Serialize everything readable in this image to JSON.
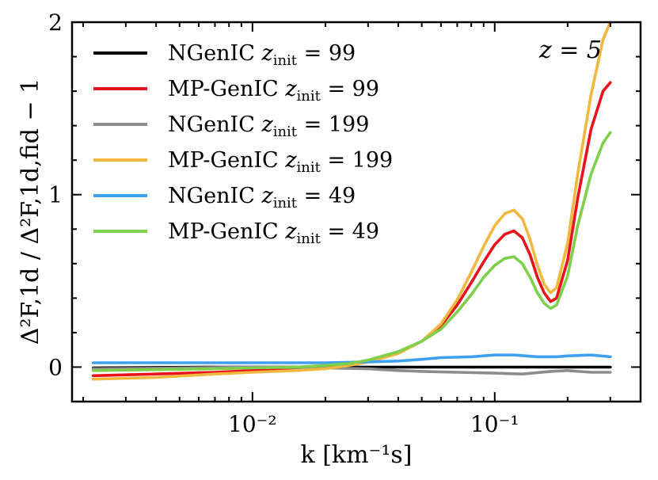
{
  "chart_data": {
    "type": "line",
    "annotation": "z = 5",
    "xlabel": "k [km⁻¹s]",
    "ylabel": "Δ²F,1d / Δ²F,1d,fid − 1",
    "xscale": "log",
    "xlim": [
      0.0018,
      0.4
    ],
    "ylim": [
      -0.2,
      2.0
    ],
    "xticks": [
      {
        "value": 0.01,
        "label": "10⁻²"
      },
      {
        "value": 0.1,
        "label": "10⁻¹"
      }
    ],
    "yticks": [
      {
        "value": 0,
        "label": "0"
      },
      {
        "value": 1,
        "label": "1"
      },
      {
        "value": 2,
        "label": "2"
      }
    ],
    "legend_position": "top-left",
    "series": [
      {
        "name": "NGenIC",
        "zinit": "99",
        "color": "#000000",
        "x": [
          0.0022,
          0.004,
          0.007,
          0.01,
          0.02,
          0.03,
          0.05,
          0.08,
          0.12,
          0.18,
          0.25,
          0.3
        ],
        "y": [
          -0.005,
          -0.002,
          0.0,
          0.0,
          0.0,
          0.0,
          0.0,
          0.0,
          0.0,
          0.0,
          0.0,
          0.0
        ]
      },
      {
        "name": "MP-GenIC",
        "zinit": "99",
        "color": "#e8131b",
        "x": [
          0.0022,
          0.004,
          0.007,
          0.01,
          0.015,
          0.02,
          0.025,
          0.03,
          0.04,
          0.05,
          0.06,
          0.07,
          0.08,
          0.09,
          0.1,
          0.11,
          0.12,
          0.13,
          0.14,
          0.15,
          0.16,
          0.17,
          0.18,
          0.2,
          0.22,
          0.25,
          0.28,
          0.3
        ],
        "y": [
          -0.05,
          -0.04,
          -0.03,
          -0.02,
          -0.01,
          0.0,
          0.01,
          0.03,
          0.08,
          0.15,
          0.24,
          0.36,
          0.49,
          0.61,
          0.71,
          0.77,
          0.79,
          0.75,
          0.65,
          0.52,
          0.43,
          0.38,
          0.4,
          0.62,
          0.98,
          1.38,
          1.6,
          1.65
        ]
      },
      {
        "name": "NGenIC",
        "zinit": "199",
        "color": "#8c8c8c",
        "x": [
          0.0022,
          0.005,
          0.01,
          0.02,
          0.03,
          0.04,
          0.05,
          0.07,
          0.1,
          0.13,
          0.17,
          0.2,
          0.25,
          0.3
        ],
        "y": [
          -0.01,
          -0.005,
          0.0,
          -0.005,
          -0.01,
          -0.02,
          -0.025,
          -0.03,
          -0.035,
          -0.04,
          -0.025,
          -0.02,
          -0.03,
          -0.03
        ]
      },
      {
        "name": "MP-GenIC",
        "zinit": "199",
        "color": "#f0b83e",
        "x": [
          0.0022,
          0.004,
          0.007,
          0.01,
          0.015,
          0.02,
          0.025,
          0.03,
          0.04,
          0.05,
          0.06,
          0.07,
          0.08,
          0.09,
          0.1,
          0.11,
          0.12,
          0.13,
          0.14,
          0.15,
          0.16,
          0.17,
          0.18,
          0.2,
          0.22,
          0.25,
          0.28,
          0.3
        ],
        "y": [
          -0.07,
          -0.06,
          -0.04,
          -0.03,
          -0.02,
          -0.01,
          0.01,
          0.03,
          0.08,
          0.15,
          0.25,
          0.39,
          0.55,
          0.7,
          0.82,
          0.89,
          0.91,
          0.86,
          0.74,
          0.59,
          0.48,
          0.43,
          0.46,
          0.72,
          1.12,
          1.58,
          1.9,
          2.0
        ]
      },
      {
        "name": "NGenIC",
        "zinit": "49",
        "color": "#3fa0ef",
        "x": [
          0.0022,
          0.005,
          0.01,
          0.02,
          0.03,
          0.04,
          0.05,
          0.06,
          0.08,
          0.1,
          0.12,
          0.15,
          0.18,
          0.2,
          0.25,
          0.3
        ],
        "y": [
          0.025,
          0.025,
          0.025,
          0.025,
          0.03,
          0.035,
          0.045,
          0.055,
          0.06,
          0.07,
          0.07,
          0.06,
          0.06,
          0.065,
          0.07,
          0.06
        ]
      },
      {
        "name": "MP-GenIC",
        "zinit": "49",
        "color": "#7ed04b",
        "x": [
          0.0022,
          0.004,
          0.007,
          0.01,
          0.015,
          0.02,
          0.025,
          0.03,
          0.04,
          0.05,
          0.06,
          0.07,
          0.08,
          0.09,
          0.1,
          0.11,
          0.12,
          0.13,
          0.14,
          0.15,
          0.16,
          0.17,
          0.18,
          0.2,
          0.22,
          0.25,
          0.28,
          0.3
        ],
        "y": [
          -0.02,
          -0.015,
          -0.01,
          -0.005,
          0.0,
          0.01,
          0.02,
          0.04,
          0.09,
          0.15,
          0.22,
          0.32,
          0.42,
          0.52,
          0.59,
          0.63,
          0.64,
          0.6,
          0.52,
          0.43,
          0.37,
          0.34,
          0.36,
          0.53,
          0.82,
          1.12,
          1.3,
          1.36
        ]
      }
    ]
  }
}
